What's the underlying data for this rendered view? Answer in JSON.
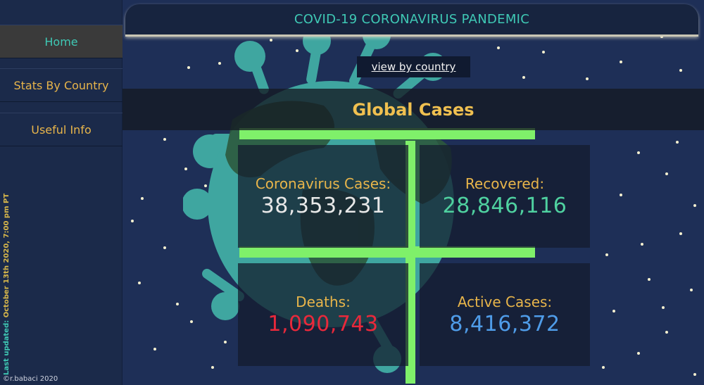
{
  "colors": {
    "accent_teal": "#3fc9b5",
    "accent_gold": "#e8b54a",
    "cases": "#e8e8e8",
    "recovered": "#4fd1a0",
    "deaths": "#e8293b",
    "active": "#4f9ce8"
  },
  "sidebar": {
    "items": [
      {
        "label": "Home"
      },
      {
        "label": "Stats By Country"
      },
      {
        "label": "Useful Info"
      }
    ],
    "last_updated_label": "Last updated:",
    "last_updated_value": "October 13th 2020, 7:00 pm PT",
    "copyright": "©r.babaci 2020"
  },
  "header": {
    "title": "COVID-19 CORONAVIRUS PANDEMIC"
  },
  "view_by_country": "view by country",
  "global": {
    "title": "Global Cases"
  },
  "stats": {
    "cases": {
      "label": "Coronavirus Cases:",
      "value": "38,353,231"
    },
    "recovered": {
      "label": "Recovered:",
      "value": "28,846,116"
    },
    "deaths": {
      "label": "Deaths:",
      "value": "1,090,743"
    },
    "active": {
      "label": "Active Cases:",
      "value": "8,416,372"
    }
  }
}
